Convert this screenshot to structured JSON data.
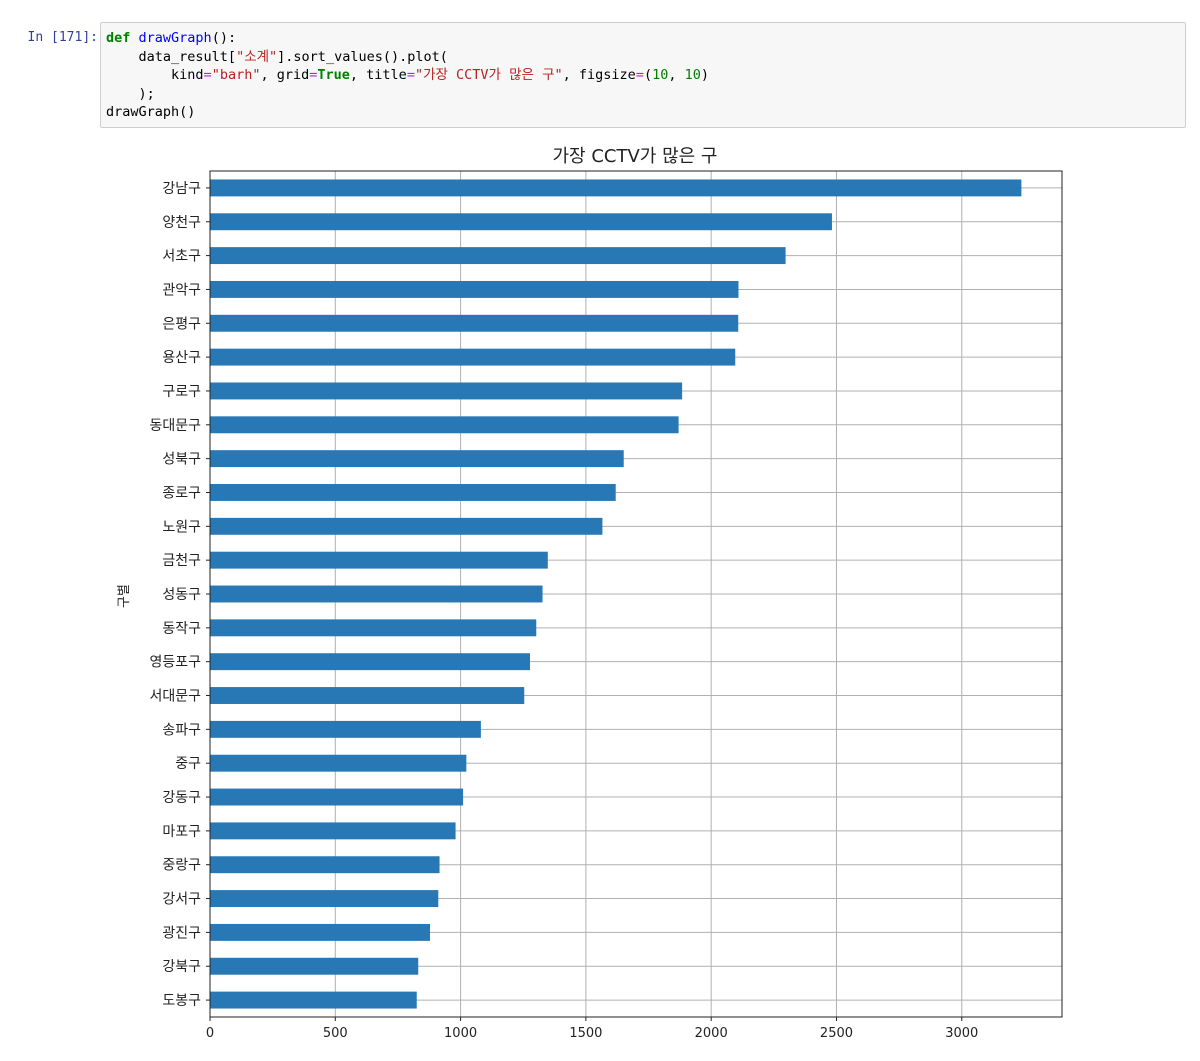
{
  "prompt": "In [171]:",
  "code": {
    "line1": {
      "kw": "def",
      "fn": "drawGraph",
      "rest": "():"
    },
    "line2": {
      "indent": "    ",
      "a": "data_result[",
      "s1": "\"소계\"",
      "b": "].sort_values().plot("
    },
    "line3": {
      "indent": "        ",
      "k1": "kind",
      "eq1": "=",
      "s1": "\"barh\"",
      "c1": ", ",
      "k2": "grid",
      "eq2": "=",
      "v2": "True",
      "c2": ", ",
      "k3": "title",
      "eq3": "=",
      "s3": "\"가장 CCTV가 많은 구\"",
      "c3": ", ",
      "k4": "figsize",
      "eq4": "=",
      "t4a": "(",
      "n4a": "10",
      "t4b": ", ",
      "n4b": "10",
      "t4c": ")"
    },
    "line4": "    );",
    "line5": "drawGraph()"
  },
  "chart_data": {
    "type": "bar",
    "orientation": "horizontal",
    "title": "가장 CCTV가 많은 구",
    "ylabel": "구별",
    "xlabel": "",
    "grid": true,
    "xlim": [
      0,
      3400
    ],
    "xticks": [
      0,
      500,
      1000,
      1500,
      2000,
      2500,
      3000
    ],
    "bar_color": "#2878b5",
    "categories": [
      "강남구",
      "양천구",
      "서초구",
      "관악구",
      "은평구",
      "용산구",
      "구로구",
      "동대문구",
      "성북구",
      "종로구",
      "노원구",
      "금천구",
      "성동구",
      "동작구",
      "영등포구",
      "서대문구",
      "송파구",
      "중구",
      "강동구",
      "마포구",
      "중랑구",
      "강서구",
      "광진구",
      "강북구",
      "도봉구"
    ],
    "values": [
      3238,
      2482,
      2297,
      2109,
      2108,
      2096,
      1884,
      1870,
      1651,
      1619,
      1566,
      1348,
      1327,
      1302,
      1277,
      1254,
      1081,
      1023,
      1010,
      980,
      916,
      911,
      878,
      831,
      825
    ]
  }
}
